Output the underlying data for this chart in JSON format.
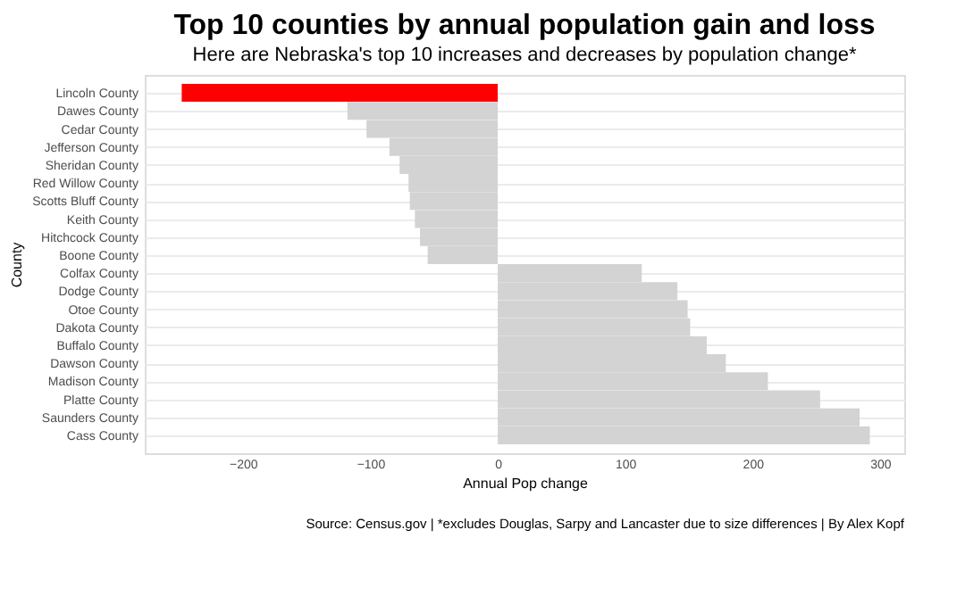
{
  "chart_data": {
    "type": "bar",
    "orientation": "horizontal",
    "title": "Top 10 counties by annual population gain and loss",
    "subtitle": "Here are Nebraska's top 10 increases and decreases by population change*",
    "xlabel": "Annual Pop change",
    "ylabel": "County",
    "categories": [
      "Lincoln County",
      "Dawes County",
      "Cedar County",
      "Jefferson County",
      "Sheridan County",
      "Red Willow County",
      "Scotts Bluff County",
      "Keith County",
      "Hitchcock County",
      "Boone County",
      "Colfax County",
      "Dodge County",
      "Otoe County",
      "Dakota County",
      "Buffalo County",
      "Dawson County",
      "Madison County",
      "Platte County",
      "Saunders County",
      "Cass County"
    ],
    "values": [
      -248,
      -118,
      -103,
      -85,
      -77,
      -70,
      -69,
      -65,
      -61,
      -55,
      113,
      141,
      149,
      151,
      164,
      179,
      212,
      253,
      284,
      292
    ],
    "colors": [
      "#ff0000",
      "#d3d3d3",
      "#d3d3d3",
      "#d3d3d3",
      "#d3d3d3",
      "#d3d3d3",
      "#d3d3d3",
      "#d3d3d3",
      "#d3d3d3",
      "#d3d3d3",
      "#d3d3d3",
      "#d3d3d3",
      "#d3d3d3",
      "#d3d3d3",
      "#d3d3d3",
      "#d3d3d3",
      "#d3d3d3",
      "#d3d3d3",
      "#d3d3d3",
      "#d3d3d3"
    ],
    "xlim": [
      -277,
      319
    ],
    "xticks": [
      -200,
      -100,
      0,
      100,
      200,
      300
    ],
    "grid": "y",
    "legend": false,
    "annotations": [
      "Source: Census.gov | *excludes Douglas, Sarpy and Lancaster due to size differences | By Alex Kopf"
    ]
  }
}
